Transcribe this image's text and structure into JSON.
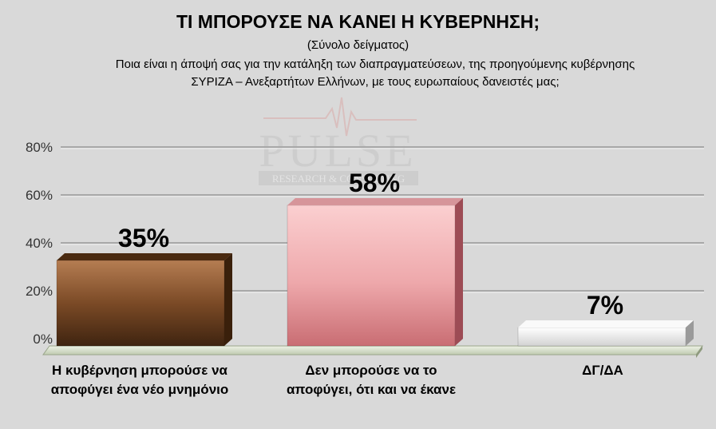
{
  "header": {
    "title": "ΤΙ ΜΠΟΡΟΥΣΕ ΝΑ ΚΑΝΕΙ Η ΚΥΒΕΡΝΗΣΗ;",
    "subtitle": "(Σύνολο δείγματος)",
    "question_line1": "Ποια είναι η άποψή σας για την κατάληξη των διαπραγματεύσεων, της προηγούμενης κυβέρνησης",
    "question_line2": "ΣΥΡΙΖΑ – Ανεξαρτήτων Ελλήνων, με τους ευρωπαίους δανειστές μας;"
  },
  "watermark": {
    "brand": "PULSE",
    "tagline": "RESEARCH & CONSULTING"
  },
  "chart_data": {
    "type": "bar",
    "categories": [
      "Η κυβέρνηση μπορούσε να αποφύγει ένα νέο μνημόνιο",
      "Δεν μπορούσε να το αποφύγει, ότι και να έκανε",
      "ΔΓ/ΔΑ"
    ],
    "category_lines": [
      [
        "Η κυβέρνηση μπορούσε να",
        "αποφύγει ένα νέο μνημόνιο"
      ],
      [
        "Δεν μπορούσε να το",
        "αποφύγει, ότι και να έκανε"
      ],
      [
        "ΔΓ/ΔΑ"
      ]
    ],
    "values": [
      35,
      58,
      7
    ],
    "data_labels": [
      "35%",
      "58%",
      "7%"
    ],
    "yticks": [
      "0%",
      "20%",
      "40%",
      "60%",
      "80%"
    ],
    "ylim": [
      0,
      80
    ],
    "grid": true,
    "colors": [
      "#5a3416",
      "#e08a8e",
      "#e6e6e6"
    ]
  }
}
